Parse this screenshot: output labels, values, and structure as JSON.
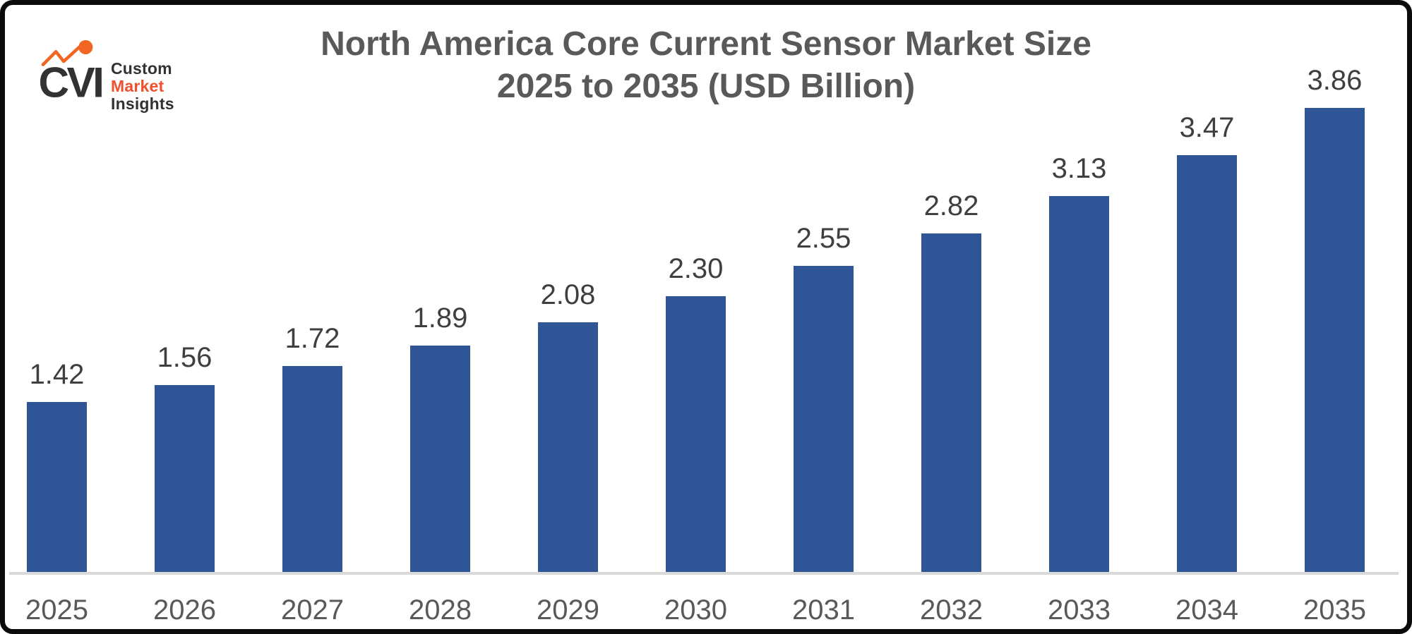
{
  "logo": {
    "monogram": "CVI",
    "company_line1": "Custom",
    "company_line2": "Market",
    "company_line3": "Insights",
    "dark_color": "#323232",
    "accent_color": "#F1502F",
    "dot_color": "#F26522"
  },
  "title": {
    "line1": "North America Core Current Sensor Market Size",
    "line2": "2025 to 2035 (USD Billion)"
  },
  "chart_data": {
    "type": "bar",
    "title": "North America Core Current Sensor Market Size 2025 to 2035 (USD Billion)",
    "unit": "USD Billion",
    "categories": [
      "2025",
      "2026",
      "2027",
      "2028",
      "2029",
      "2030",
      "2031",
      "2032",
      "2033",
      "2034",
      "2035"
    ],
    "values": [
      1.42,
      1.56,
      1.72,
      1.89,
      2.08,
      2.3,
      2.55,
      2.82,
      3.13,
      3.47,
      3.86
    ],
    "data_labels": [
      "1.42",
      "1.56",
      "1.72",
      "1.89",
      "2.08",
      "2.30",
      "2.55",
      "2.82",
      "3.13",
      "3.47",
      "3.86"
    ],
    "xlabel": "",
    "ylabel": "",
    "ylim": [
      0,
      4
    ],
    "grid": false,
    "legend": false,
    "bar_color": "#2F5597",
    "value_label_color": "#3F3F3F",
    "axis_label_color": "#595959",
    "axis_line_color": "#D9D9D9"
  }
}
